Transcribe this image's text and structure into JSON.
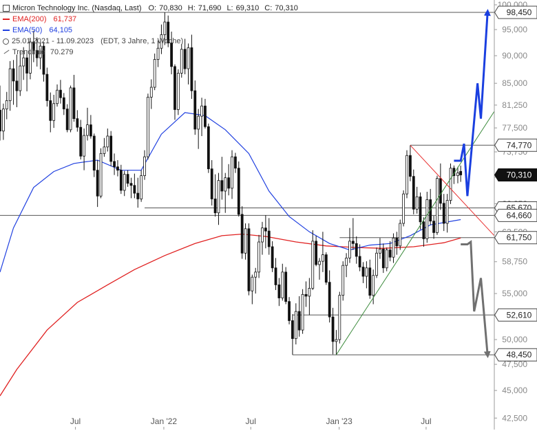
{
  "header": {
    "instrument": "Micron Technology Inc. (Nasdaq, Last)",
    "ohlc": {
      "o_label": "O:",
      "o": "70,830",
      "h_label": "H:",
      "h": "71,690",
      "l_label": "L:",
      "l": "69,310",
      "c_label": "C:",
      "c": "70,310"
    }
  },
  "legend": {
    "ema200": {
      "label": "EMA(200)",
      "value": "61,737",
      "color": "#e02020"
    },
    "ema50": {
      "label": "EMA(50)",
      "value": "64,105",
      "color": "#2040e0"
    },
    "range": {
      "label": "25.01.2021 - 11.09.2023",
      "info": "(EDT, 3 Jahre, 1 Woche)"
    },
    "trend": {
      "label": "Trendlinie",
      "value": "70.279"
    }
  },
  "colors": {
    "ema200": "#e02020",
    "ema50": "#2040e0",
    "bull_arrow": "#1a3fe0",
    "bear_arrow": "#707070",
    "trend_support": "#3a8a3a",
    "trend_resistance": "#e83030",
    "level_line": "#555555",
    "candle": "#111111"
  },
  "chart_data": {
    "type": "candlestick",
    "y_scale": "log",
    "ylim": [
      41.5,
      101
    ],
    "x_range": [
      "2021-01-25",
      "2023-11-20"
    ],
    "y_ticks": [
      "42,500",
      "45,000",
      "47,500",
      "50,000",
      "52,500",
      "55,000",
      "58,750",
      "62,500",
      "66,250",
      "70,000",
      "73,750",
      "77,500",
      "81,250",
      "85,000",
      "90,000",
      "95,000",
      "100,000"
    ],
    "x_ticks": [
      {
        "label": "Jul",
        "date": "2021-07-01"
      },
      {
        "label": "Jan '22",
        "date": "2022-01-01"
      },
      {
        "label": "Jul",
        "date": "2022-07-01"
      },
      {
        "label": "Jan '23",
        "date": "2023-01-01"
      },
      {
        "label": "Jul",
        "date": "2023-07-01"
      }
    ],
    "price_levels": [
      {
        "label": "98,450",
        "value": 98.45,
        "from": "2021-01-25",
        "style": "outline"
      },
      {
        "label": "74,770",
        "value": 74.77,
        "from": "2023-05-29",
        "style": "outline"
      },
      {
        "label": "70,310",
        "value": 70.31,
        "style": "current"
      },
      {
        "label": "65,670",
        "value": 65.67,
        "from": "2021-11-22",
        "style": "outline"
      },
      {
        "label": "64,660",
        "value": 64.66,
        "from": "2021-01-25",
        "style": "outline"
      },
      {
        "label": "61,750",
        "value": 61.75,
        "from": "2023-01-02",
        "style": "outline"
      },
      {
        "label": "52,610",
        "value": 52.61,
        "from": "2022-09-26",
        "style": "outline"
      },
      {
        "label": "48,450",
        "value": 48.45,
        "from": "2022-09-26",
        "style": "outline"
      }
    ],
    "trendlines": [
      {
        "name": "support",
        "from": [
          "2022-12-26",
          48.45
        ],
        "to": [
          "2023-11-20",
          80.2
        ]
      },
      {
        "name": "resistance",
        "from": [
          "2023-05-29",
          74.77
        ],
        "to": [
          "2023-11-20",
          62.0
        ]
      }
    ],
    "projections": [
      {
        "name": "bull",
        "points": [
          [
            "2023-08-28",
            72.4
          ],
          [
            "2023-09-11",
            72.4
          ],
          [
            "2023-09-18",
            75.0
          ],
          [
            "2023-09-25",
            67.3
          ],
          [
            "2023-10-16",
            85.0
          ],
          [
            "2023-10-23",
            79.0
          ],
          [
            "2023-11-06",
            98.45
          ]
        ]
      },
      {
        "name": "bear",
        "points": [
          [
            "2023-09-11",
            60.9
          ],
          [
            "2023-09-25",
            60.9
          ],
          [
            "2023-10-02",
            61.2
          ],
          [
            "2023-10-09",
            53.0
          ],
          [
            "2023-10-23",
            56.8
          ],
          [
            "2023-11-06",
            48.45
          ]
        ]
      }
    ],
    "ema200_points": [
      [
        "2021-01-25",
        44.5
      ],
      [
        "2021-03-01",
        47.0
      ],
      [
        "2021-05-03",
        51.0
      ],
      [
        "2021-07-05",
        54.0
      ],
      [
        "2021-09-06",
        56.0
      ],
      [
        "2021-11-01",
        57.8
      ],
      [
        "2022-01-03",
        59.5
      ],
      [
        "2022-03-07",
        61.0
      ],
      [
        "2022-05-02",
        62.0
      ],
      [
        "2022-06-13",
        62.2
      ],
      [
        "2022-08-01",
        61.9
      ],
      [
        "2022-10-03",
        61.2
      ],
      [
        "2022-12-05",
        60.7
      ],
      [
        "2023-02-06",
        60.5
      ],
      [
        "2023-04-03",
        60.4
      ],
      [
        "2023-06-05",
        60.6
      ],
      [
        "2023-08-07",
        61.1
      ],
      [
        "2023-09-11",
        61.7
      ]
    ],
    "ema50_points": [
      [
        "2021-01-25",
        57.5
      ],
      [
        "2021-02-22",
        63.0
      ],
      [
        "2021-04-05",
        68.5
      ],
      [
        "2021-05-17",
        70.8
      ],
      [
        "2021-06-28",
        72.0
      ],
      [
        "2021-08-16",
        72.5
      ],
      [
        "2021-10-04",
        71.0
      ],
      [
        "2021-11-15",
        71.0
      ],
      [
        "2021-12-27",
        76.5
      ],
      [
        "2022-02-14",
        80.0
      ],
      [
        "2022-03-28",
        79.5
      ],
      [
        "2022-05-09",
        77.2
      ],
      [
        "2022-06-27",
        73.5
      ],
      [
        "2022-08-08",
        68.0
      ],
      [
        "2022-09-19",
        64.5
      ],
      [
        "2022-10-31",
        62.5
      ],
      [
        "2022-12-12",
        61.0
      ],
      [
        "2023-01-23",
        60.2
      ],
      [
        "2023-03-06",
        60.8
      ],
      [
        "2023-04-17",
        61.0
      ],
      [
        "2023-05-29",
        62.0
      ],
      [
        "2023-07-10",
        63.4
      ],
      [
        "2023-09-11",
        64.1
      ]
    ],
    "candles": [
      [
        "2021-01-25",
        80.4,
        84.6,
        75.5,
        77.0
      ],
      [
        "2021-02-01",
        77.0,
        81.5,
        75.6,
        80.6
      ],
      [
        "2021-02-08",
        80.6,
        83.5,
        78.9,
        82.0
      ],
      [
        "2021-02-15",
        82.0,
        89.0,
        80.3,
        87.6
      ],
      [
        "2021-02-22",
        87.6,
        89.2,
        81.3,
        85.4
      ],
      [
        "2021-03-01",
        85.4,
        90.2,
        80.9,
        83.7
      ],
      [
        "2021-03-08",
        83.7,
        91.0,
        82.8,
        88.1
      ],
      [
        "2021-03-15",
        88.1,
        91.6,
        85.6,
        89.6
      ],
      [
        "2021-03-22",
        89.6,
        91.0,
        83.6,
        86.8
      ],
      [
        "2021-03-29",
        86.8,
        93.4,
        85.7,
        92.6
      ],
      [
        "2021-04-05",
        92.6,
        94.8,
        88.8,
        91.0
      ],
      [
        "2021-04-12",
        91.0,
        93.5,
        88.0,
        89.6
      ],
      [
        "2021-04-19",
        89.6,
        92.5,
        87.5,
        91.8
      ],
      [
        "2021-04-26",
        91.8,
        92.6,
        85.3,
        86.6
      ],
      [
        "2021-05-03",
        86.6,
        87.8,
        81.0,
        82.0
      ],
      [
        "2021-05-10",
        82.0,
        83.4,
        76.8,
        78.7
      ],
      [
        "2021-05-17",
        78.7,
        83.0,
        77.5,
        81.5
      ],
      [
        "2021-05-24",
        81.5,
        84.8,
        81.0,
        83.8
      ],
      [
        "2021-05-31",
        83.8,
        85.6,
        81.5,
        82.5
      ],
      [
        "2021-06-07",
        82.5,
        83.3,
        79.6,
        80.6
      ],
      [
        "2021-06-14",
        80.6,
        81.4,
        76.8,
        77.2
      ],
      [
        "2021-06-21",
        77.2,
        84.6,
        76.8,
        84.2
      ],
      [
        "2021-06-28",
        84.2,
        86.5,
        78.5,
        79.0
      ],
      [
        "2021-07-05",
        79.0,
        80.4,
        76.9,
        77.6
      ],
      [
        "2021-07-12",
        77.6,
        78.8,
        72.6,
        73.1
      ],
      [
        "2021-07-19",
        73.1,
        77.4,
        71.0,
        76.3
      ],
      [
        "2021-07-26",
        76.3,
        80.8,
        75.5,
        78.0
      ],
      [
        "2021-08-02",
        78.0,
        79.6,
        75.8,
        76.2
      ],
      [
        "2021-08-09",
        76.2,
        76.6,
        70.0,
        71.0
      ],
      [
        "2021-08-16",
        71.0,
        72.5,
        65.8,
        67.3
      ],
      [
        "2021-08-23",
        67.3,
        74.3,
        67.0,
        73.5
      ],
      [
        "2021-08-30",
        73.5,
        75.9,
        73.0,
        74.5
      ],
      [
        "2021-09-06",
        74.5,
        77.4,
        73.8,
        76.2
      ],
      [
        "2021-09-13",
        76.2,
        77.0,
        71.6,
        72.3
      ],
      [
        "2021-09-20",
        72.3,
        73.5,
        70.3,
        71.5
      ],
      [
        "2021-09-27",
        71.5,
        72.5,
        70.1,
        71.0
      ],
      [
        "2021-10-04",
        71.0,
        71.8,
        67.6,
        68.1
      ],
      [
        "2021-10-11",
        68.1,
        70.9,
        67.3,
        70.4
      ],
      [
        "2021-10-18",
        70.4,
        71.0,
        68.6,
        69.1
      ],
      [
        "2021-10-25",
        69.1,
        69.9,
        67.0,
        68.8
      ],
      [
        "2021-11-01",
        68.8,
        70.5,
        67.0,
        67.7
      ],
      [
        "2021-11-08",
        67.7,
        69.9,
        65.7,
        66.9
      ],
      [
        "2021-11-15",
        66.9,
        71.0,
        66.5,
        70.2
      ],
      [
        "2021-11-22",
        70.2,
        74.0,
        69.6,
        73.0
      ],
      [
        "2021-11-29",
        73.0,
        83.2,
        72.6,
        82.6
      ],
      [
        "2021-12-06",
        82.6,
        85.7,
        80.6,
        84.3
      ],
      [
        "2021-12-13",
        84.3,
        90.4,
        83.8,
        89.3
      ],
      [
        "2021-12-20",
        89.3,
        92.9,
        87.9,
        91.4
      ],
      [
        "2021-12-27",
        91.4,
        96.0,
        90.3,
        94.0
      ],
      [
        "2022-01-03",
        94.0,
        98.45,
        92.0,
        96.5
      ],
      [
        "2022-01-10",
        96.5,
        97.8,
        91.6,
        92.4
      ],
      [
        "2022-01-17",
        92.4,
        94.6,
        86.6,
        88.0
      ],
      [
        "2022-01-24",
        88.0,
        88.4,
        78.8,
        80.5
      ],
      [
        "2022-01-31",
        80.5,
        87.5,
        79.6,
        86.8
      ],
      [
        "2022-02-07",
        86.8,
        92.2,
        86.0,
        91.2
      ],
      [
        "2022-02-14",
        91.2,
        93.2,
        86.6,
        87.6
      ],
      [
        "2022-02-21",
        87.6,
        92.3,
        84.8,
        91.5
      ],
      [
        "2022-02-28",
        91.5,
        94.0,
        82.3,
        83.7
      ],
      [
        "2022-03-07",
        83.7,
        85.5,
        76.4,
        77.3
      ],
      [
        "2022-03-14",
        77.3,
        80.6,
        74.2,
        79.4
      ],
      [
        "2022-03-21",
        79.4,
        82.5,
        76.2,
        81.1
      ],
      [
        "2022-03-28",
        81.1,
        82.3,
        77.4,
        77.7
      ],
      [
        "2022-04-04",
        77.7,
        78.2,
        70.6,
        71.2
      ],
      [
        "2022-04-11",
        71.2,
        72.5,
        66.0,
        66.9
      ],
      [
        "2022-04-18",
        66.9,
        70.4,
        64.5,
        65.0
      ],
      [
        "2022-04-25",
        65.0,
        70.6,
        63.4,
        69.5
      ],
      [
        "2022-05-02",
        69.5,
        73.0,
        66.8,
        68.0
      ],
      [
        "2022-05-09",
        68.0,
        70.6,
        65.0,
        69.9
      ],
      [
        "2022-05-16",
        69.9,
        71.9,
        67.4,
        68.4
      ],
      [
        "2022-05-23",
        68.4,
        74.0,
        66.9,
        73.0
      ],
      [
        "2022-05-30",
        73.0,
        73.6,
        70.6,
        71.3
      ],
      [
        "2022-06-06",
        71.3,
        72.3,
        64.5,
        64.8
      ],
      [
        "2022-06-13",
        64.8,
        65.9,
        59.1,
        59.8
      ],
      [
        "2022-06-20",
        59.8,
        63.6,
        59.0,
        62.9
      ],
      [
        "2022-06-27",
        62.9,
        63.6,
        54.8,
        55.3
      ],
      [
        "2022-07-04",
        55.3,
        57.2,
        53.8,
        56.9
      ],
      [
        "2022-07-11",
        56.9,
        58.0,
        55.0,
        57.5
      ],
      [
        "2022-07-18",
        57.5,
        62.1,
        56.8,
        61.2
      ],
      [
        "2022-07-25",
        61.2,
        63.8,
        59.6,
        63.0
      ],
      [
        "2022-08-01",
        63.0,
        64.7,
        60.4,
        62.6
      ],
      [
        "2022-08-08",
        62.6,
        64.3,
        59.6,
        60.6
      ],
      [
        "2022-08-15",
        60.6,
        61.3,
        57.5,
        58.0
      ],
      [
        "2022-08-22",
        58.0,
        59.2,
        55.4,
        56.0
      ],
      [
        "2022-08-29",
        56.0,
        56.8,
        53.6,
        54.5
      ],
      [
        "2022-09-05",
        54.5,
        58.5,
        54.2,
        57.5
      ],
      [
        "2022-09-12",
        57.5,
        58.1,
        53.8,
        54.1
      ],
      [
        "2022-09-19",
        54.1,
        54.6,
        51.6,
        52.0
      ],
      [
        "2022-09-26",
        52.0,
        52.7,
        48.45,
        50.1
      ],
      [
        "2022-10-03",
        50.1,
        53.9,
        49.5,
        53.0
      ],
      [
        "2022-10-10",
        53.0,
        54.7,
        50.3,
        51.0
      ],
      [
        "2022-10-17",
        51.0,
        55.5,
        50.6,
        54.9
      ],
      [
        "2022-10-24",
        54.9,
        56.4,
        53.5,
        54.7
      ],
      [
        "2022-10-31",
        54.7,
        56.8,
        52.6,
        55.6
      ],
      [
        "2022-11-07",
        55.6,
        62.7,
        55.4,
        61.3
      ],
      [
        "2022-11-14",
        61.3,
        62.0,
        58.2,
        58.4
      ],
      [
        "2022-11-21",
        58.4,
        59.2,
        56.6,
        58.8
      ],
      [
        "2022-11-28",
        58.8,
        62.5,
        57.5,
        59.6
      ],
      [
        "2022-12-05",
        59.6,
        59.9,
        56.0,
        56.3
      ],
      [
        "2022-12-12",
        56.3,
        57.7,
        51.8,
        52.4
      ],
      [
        "2022-12-19",
        52.4,
        53.4,
        48.5,
        49.8
      ],
      [
        "2022-12-26",
        49.8,
        51.0,
        48.45,
        50.0
      ],
      [
        "2023-01-02",
        50.0,
        55.2,
        49.6,
        54.8
      ],
      [
        "2023-01-09",
        54.8,
        58.8,
        54.2,
        58.3
      ],
      [
        "2023-01-16",
        58.3,
        59.8,
        56.9,
        59.2
      ],
      [
        "2023-01-23",
        59.2,
        63.0,
        58.6,
        61.3
      ],
      [
        "2023-01-30",
        61.3,
        64.3,
        60.2,
        61.0
      ],
      [
        "2023-02-06",
        61.0,
        61.9,
        58.5,
        59.4
      ],
      [
        "2023-02-13",
        59.4,
        60.9,
        57.6,
        58.1
      ],
      [
        "2023-02-20",
        58.1,
        58.7,
        56.2,
        57.0
      ],
      [
        "2023-02-27",
        57.0,
        58.8,
        55.6,
        58.0
      ],
      [
        "2023-03-06",
        58.0,
        59.0,
        54.4,
        54.8
      ],
      [
        "2023-03-13",
        54.8,
        57.8,
        53.8,
        57.1
      ],
      [
        "2023-03-20",
        57.1,
        60.5,
        56.8,
        59.8
      ],
      [
        "2023-03-27",
        59.8,
        61.7,
        59.1,
        60.3
      ],
      [
        "2023-04-03",
        60.3,
        61.0,
        57.4,
        58.0
      ],
      [
        "2023-04-10",
        58.0,
        60.5,
        57.6,
        60.2
      ],
      [
        "2023-04-17",
        60.2,
        61.3,
        58.8,
        59.3
      ],
      [
        "2023-04-24",
        59.3,
        62.3,
        58.6,
        61.7
      ],
      [
        "2023-05-01",
        61.7,
        62.5,
        59.6,
        60.7
      ],
      [
        "2023-05-08",
        60.7,
        64.1,
        60.2,
        63.6
      ],
      [
        "2023-05-15",
        63.6,
        68.1,
        63.2,
        67.6
      ],
      [
        "2023-05-22",
        67.6,
        74.0,
        67.0,
        73.2
      ],
      [
        "2023-05-29",
        73.2,
        74.77,
        69.4,
        70.1
      ],
      [
        "2023-06-05",
        70.1,
        71.1,
        64.8,
        65.5
      ],
      [
        "2023-06-12",
        65.5,
        68.6,
        64.9,
        67.2
      ],
      [
        "2023-06-19",
        67.2,
        67.8,
        62.8,
        63.8
      ],
      [
        "2023-06-26",
        63.8,
        64.4,
        60.6,
        61.6
      ],
      [
        "2023-07-03",
        61.6,
        67.9,
        61.1,
        66.8
      ],
      [
        "2023-07-10",
        66.8,
        68.3,
        63.4,
        63.9
      ],
      [
        "2023-07-17",
        63.9,
        64.6,
        61.6,
        62.4
      ],
      [
        "2023-07-24",
        62.4,
        70.2,
        62.1,
        69.8
      ],
      [
        "2023-07-31",
        69.8,
        72.0,
        65.4,
        66.3
      ],
      [
        "2023-08-07",
        66.3,
        67.6,
        62.6,
        63.6
      ],
      [
        "2023-08-14",
        63.6,
        67.6,
        62.4,
        66.7
      ],
      [
        "2023-08-21",
        66.7,
        72.0,
        66.2,
        71.3
      ],
      [
        "2023-08-28",
        71.3,
        71.7,
        69.0,
        70.2
      ],
      [
        "2023-09-05",
        70.2,
        71.5,
        69.1,
        70.6
      ],
      [
        "2023-09-11",
        70.83,
        71.69,
        69.31,
        70.31
      ]
    ]
  }
}
